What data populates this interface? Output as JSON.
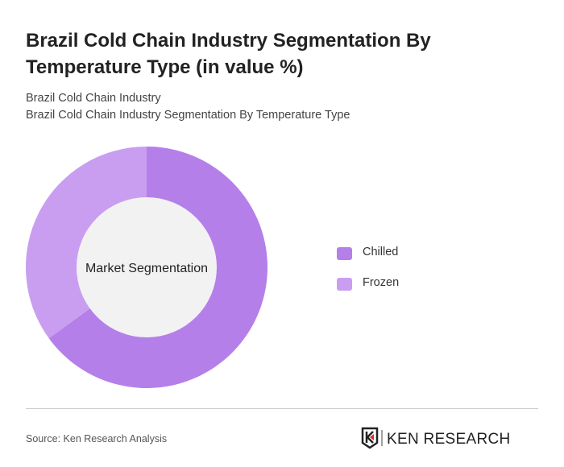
{
  "header": {
    "title": "Brazil Cold Chain Industry Segmentation By Temperature Type (in value %)",
    "subtitle1": "Brazil Cold Chain Industry",
    "subtitle2": "Brazil Cold Chain Industry Segmentation By Temperature Type"
  },
  "chart_data": {
    "type": "pie",
    "center_label": "Market Segmentation",
    "categories": [
      "Chilled",
      "Frozen"
    ],
    "values": [
      65,
      35
    ],
    "colors": [
      "#b57fea",
      "#c99ef0"
    ],
    "legend_position": "right"
  },
  "footer": {
    "source": "Source: Ken Research Analysis",
    "logo_text": "KEN RESEARCH"
  }
}
